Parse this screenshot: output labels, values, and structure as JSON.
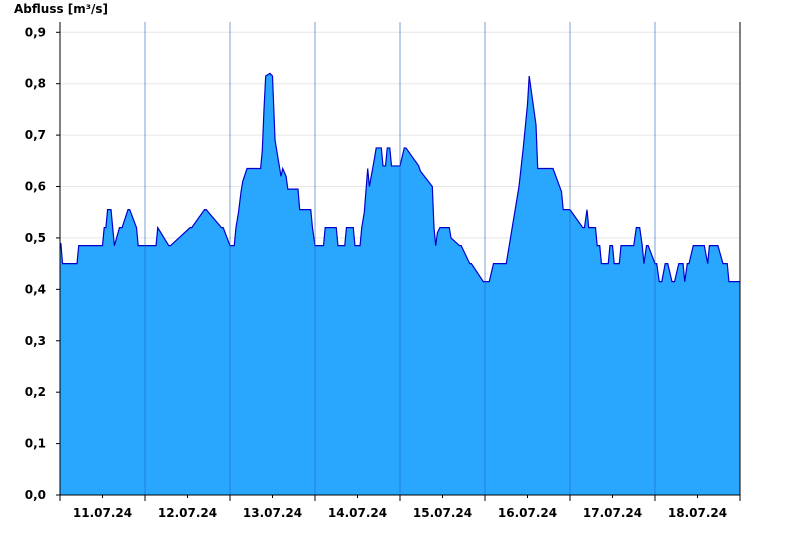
{
  "chart_data": {
    "type": "area",
    "title": "",
    "ylabel": "Abfluss [m³/s]",
    "xlabel": "",
    "ylim": [
      0,
      0.92
    ],
    "yticks": [
      0,
      0.1,
      0.2,
      0.3,
      0.4,
      0.5,
      0.6,
      0.7,
      0.8,
      0.9
    ],
    "ytick_labels": [
      "0,0",
      "0,1",
      "0,2",
      "0,3",
      "0,4",
      "0,5",
      "0,6",
      "0,7",
      "0,8",
      "0,9"
    ],
    "xlim": [
      10.0,
      18.0
    ],
    "xtick_labels": [
      "11.07.24",
      "12.07.24",
      "13.07.24",
      "14.07.24",
      "15.07.24",
      "16.07.24",
      "17.07.24",
      "18.07.24"
    ],
    "grid": true,
    "fill_color": "#29a7ff",
    "line_color": "#0000cc",
    "series": [
      {
        "x": [
          10.0,
          10.01,
          10.02,
          10.03,
          10.2,
          10.22,
          10.45,
          10.5,
          10.52,
          10.54,
          10.56,
          10.6,
          10.62,
          10.64,
          10.7,
          10.73,
          10.8,
          10.82,
          10.9,
          10.92,
          10.97,
          11.0,
          11.08,
          11.13,
          11.15,
          11.28,
          11.3,
          11.53,
          11.55,
          11.7,
          11.72,
          11.9,
          11.92,
          12.0,
          12.05,
          12.07,
          12.1,
          12.13,
          12.15,
          12.2,
          12.22,
          12.36,
          12.38,
          12.4,
          12.42,
          12.47,
          12.5,
          12.53,
          12.58,
          12.6,
          12.62,
          12.66,
          12.68,
          12.72,
          12.8,
          12.82,
          12.95,
          12.97,
          13.0,
          13.1,
          13.12,
          13.25,
          13.27,
          13.35,
          13.37,
          13.45,
          13.47,
          13.53,
          13.55,
          13.58,
          13.62,
          13.64,
          13.7,
          13.72,
          13.78,
          13.8,
          13.83,
          13.85,
          13.88,
          13.9,
          13.98,
          14.0,
          14.05,
          14.07,
          14.22,
          14.24,
          14.38,
          14.4,
          14.42,
          14.44,
          14.47,
          14.52,
          14.54,
          14.58,
          14.6,
          14.7,
          14.72,
          14.82,
          14.84,
          14.98,
          14.99,
          15.0,
          15.02,
          15.05,
          15.1,
          15.12,
          15.2,
          15.25,
          15.3,
          15.32,
          15.4,
          15.45,
          15.5,
          15.52,
          15.6,
          15.62,
          15.68,
          15.72,
          15.75,
          15.8,
          15.9,
          15.92,
          16.0,
          16.15,
          16.17,
          16.2,
          16.22,
          16.3,
          16.32,
          16.35,
          16.37,
          16.45,
          16.47,
          16.5,
          16.52,
          16.55,
          16.58,
          16.6,
          16.62,
          16.7,
          16.72,
          16.75,
          16.78,
          16.82,
          16.85,
          16.87,
          16.9,
          16.92,
          17.0,
          17.02,
          17.05,
          17.08,
          17.12,
          17.15,
          17.2,
          17.23,
          17.28,
          17.3,
          17.33,
          17.35,
          17.38,
          17.4,
          17.45,
          17.5,
          17.52,
          17.58,
          17.62,
          17.64,
          17.72,
          17.74,
          17.8,
          17.82,
          17.85,
          17.87,
          17.92,
          17.95,
          18.0
        ],
        "y": [
          0.48,
          0.49,
          0.47,
          0.45,
          0.45,
          0.485,
          0.485,
          0.485,
          0.52,
          0.52,
          0.555,
          0.555,
          0.52,
          0.485,
          0.52,
          0.52,
          0.555,
          0.555,
          0.52,
          0.485,
          0.485,
          0.485,
          0.485,
          0.485,
          0.52,
          0.485,
          0.485,
          0.52,
          0.52,
          0.555,
          0.555,
          0.52,
          0.52,
          0.485,
          0.485,
          0.52,
          0.55,
          0.59,
          0.61,
          0.635,
          0.635,
          0.635,
          0.67,
          0.75,
          0.815,
          0.82,
          0.815,
          0.69,
          0.64,
          0.62,
          0.635,
          0.62,
          0.595,
          0.595,
          0.595,
          0.555,
          0.555,
          0.52,
          0.485,
          0.485,
          0.52,
          0.52,
          0.485,
          0.485,
          0.52,
          0.52,
          0.485,
          0.485,
          0.52,
          0.55,
          0.635,
          0.6,
          0.655,
          0.675,
          0.675,
          0.64,
          0.64,
          0.675,
          0.675,
          0.64,
          0.64,
          0.64,
          0.675,
          0.675,
          0.64,
          0.63,
          0.6,
          0.52,
          0.485,
          0.51,
          0.52,
          0.52,
          0.52,
          0.52,
          0.5,
          0.485,
          0.485,
          0.45,
          0.45,
          0.415,
          0.415,
          0.415,
          0.415,
          0.415,
          0.45,
          0.45,
          0.45,
          0.45,
          0.5,
          0.52,
          0.6,
          0.675,
          0.76,
          0.815,
          0.72,
          0.635,
          0.635,
          0.635,
          0.635,
          0.635,
          0.59,
          0.555,
          0.555,
          0.52,
          0.52,
          0.555,
          0.52,
          0.52,
          0.485,
          0.485,
          0.45,
          0.45,
          0.485,
          0.485,
          0.45,
          0.45,
          0.45,
          0.485,
          0.485,
          0.485,
          0.485,
          0.485,
          0.52,
          0.52,
          0.485,
          0.45,
          0.485,
          0.485,
          0.45,
          0.45,
          0.415,
          0.415,
          0.45,
          0.45,
          0.415,
          0.415,
          0.45,
          0.45,
          0.45,
          0.415,
          0.45,
          0.45,
          0.485,
          0.485,
          0.485,
          0.485,
          0.45,
          0.485,
          0.485,
          0.485,
          0.45,
          0.45,
          0.45,
          0.415,
          0.415,
          0.415,
          0.415
        ]
      }
    ]
  }
}
